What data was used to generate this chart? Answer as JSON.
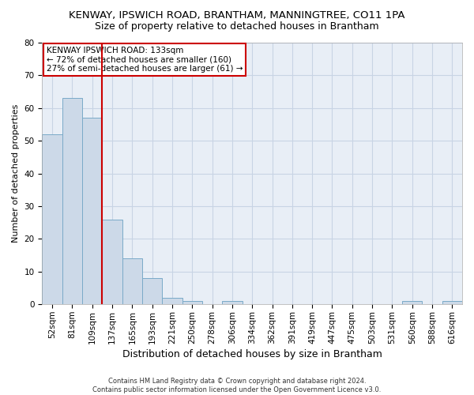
{
  "title": "KENWAY, IPSWICH ROAD, BRANTHAM, MANNINGTREE, CO11 1PA",
  "subtitle": "Size of property relative to detached houses in Brantham",
  "xlabel": "Distribution of detached houses by size in Brantham",
  "ylabel": "Number of detached properties",
  "categories": [
    "52sqm",
    "81sqm",
    "109sqm",
    "137sqm",
    "165sqm",
    "193sqm",
    "221sqm",
    "250sqm",
    "278sqm",
    "306sqm",
    "334sqm",
    "362sqm",
    "391sqm",
    "419sqm",
    "447sqm",
    "475sqm",
    "503sqm",
    "531sqm",
    "560sqm",
    "588sqm",
    "616sqm"
  ],
  "values": [
    52,
    63,
    57,
    26,
    14,
    8,
    2,
    1,
    0,
    1,
    0,
    0,
    0,
    0,
    0,
    0,
    0,
    0,
    1,
    0,
    1
  ],
  "bar_color": "#ccd9e8",
  "bar_edge_color": "#7aaac8",
  "vline_x": 2.5,
  "vline_color": "#cc0000",
  "vline_label": "KENWAY IPSWICH ROAD: 133sqm",
  "annotation_line1": "← 72% of detached houses are smaller (160)",
  "annotation_line2": "27% of semi-detached houses are larger (61) →",
  "annotation_box_color": "#cc0000",
  "footer_line1": "Contains HM Land Registry data © Crown copyright and database right 2024.",
  "footer_line2": "Contains public sector information licensed under the Open Government Licence v3.0.",
  "ylim": [
    0,
    80
  ],
  "yticks": [
    0,
    10,
    20,
    30,
    40,
    50,
    60,
    70,
    80
  ],
  "background_color": "#ffffff",
  "plot_bg_color": "#e8eef6",
  "grid_color": "#c8d4e4",
  "title_fontsize": 9.5,
  "subtitle_fontsize": 9,
  "xlabel_fontsize": 9,
  "ylabel_fontsize": 8,
  "tick_fontsize": 7.5,
  "annotation_fontsize": 7.5,
  "footer_fontsize": 6
}
